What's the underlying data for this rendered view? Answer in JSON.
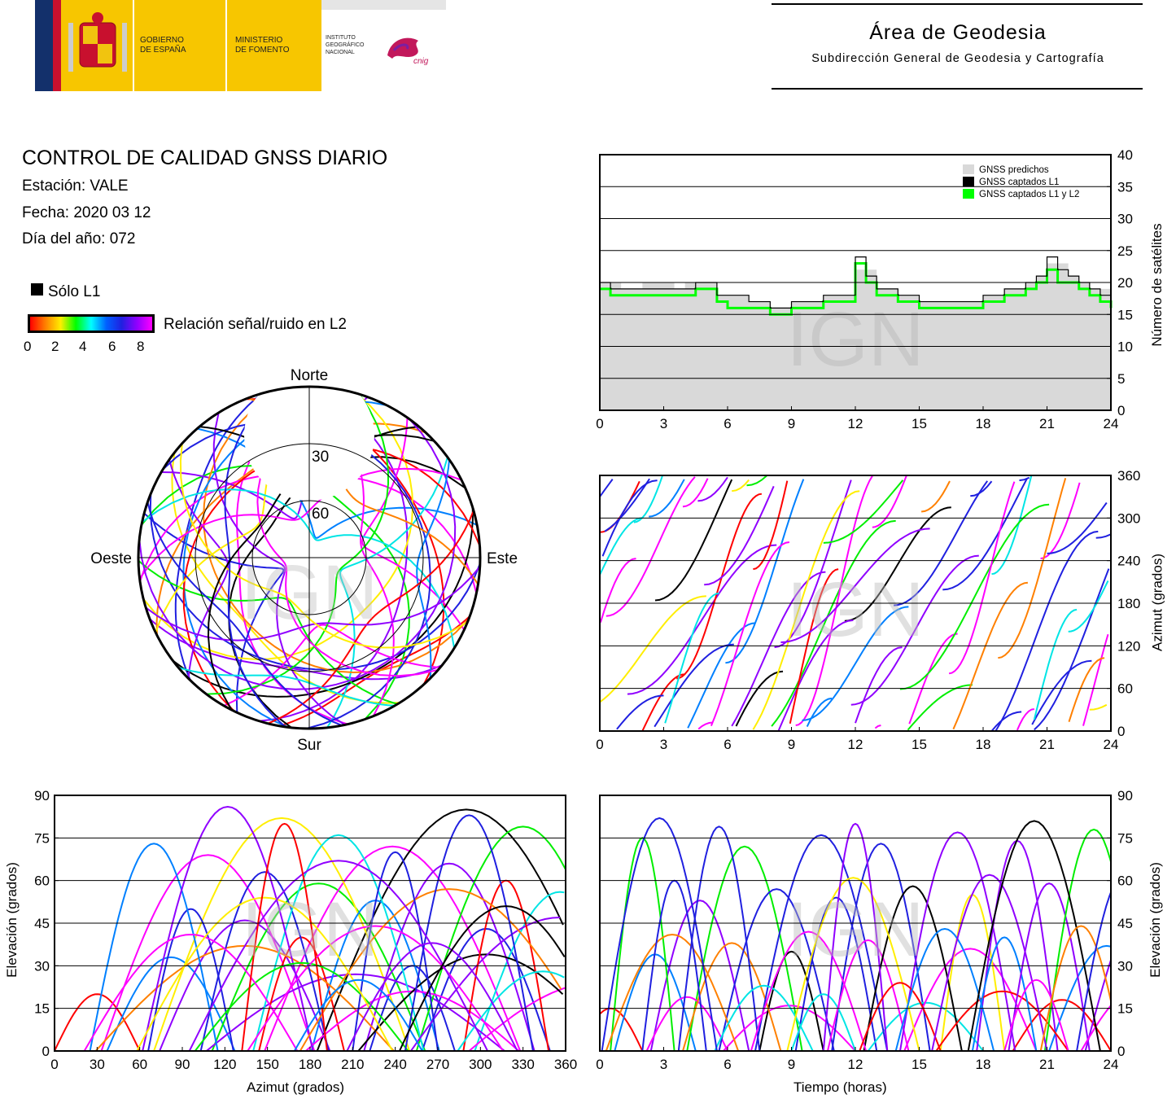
{
  "header": {
    "gov_line1": "GOBIERNO",
    "gov_line2": "DE ESPAÑA",
    "min_line1": "MINISTERIO",
    "min_line2": "DE FOMENTO",
    "inst_line1": "INSTITUTO",
    "inst_line2": "GEOGRÁFICO",
    "inst_line3": "NACIONAL",
    "cnig": "cnig",
    "area_title": "Área de Geodesia",
    "area_subtitle": "Subdirección General de Geodesia y Cartografía"
  },
  "info": {
    "title": "CONTROL DE CALIDAD GNSS DIARIO",
    "station": "Estación: VALE",
    "date": "Fecha: 2020 03 12",
    "doy": "Día del año: 072",
    "legend_l1": "Sólo L1",
    "legend_snr": "Relación señal/ruido en L2",
    "colorbar_ticks": [
      "0",
      "2",
      "4",
      "6",
      "8"
    ]
  },
  "watermark": "IGN",
  "colors": {
    "predicted": "#d9d9d9",
    "l1": "#000000",
    "l1l2": "#00ff00"
  },
  "chart_data": [
    {
      "id": "satellite-count",
      "type": "area",
      "legend": [
        "GNSS predichos",
        "GNSS captados L1",
        "GNSS captados L1 y L2"
      ],
      "legend_position": "top-right",
      "ylabel": "Número de satélites",
      "xlim": [
        0,
        24
      ],
      "ylim": [
        0,
        40
      ],
      "xticks": [
        "0",
        "3",
        "6",
        "9",
        "12",
        "15",
        "18",
        "21",
        "24"
      ],
      "yticks": [
        "0",
        "5",
        "10",
        "15",
        "20",
        "25",
        "30",
        "35",
        "40"
      ],
      "grid": true,
      "x": [
        0,
        0.5,
        1,
        1.5,
        2,
        2.5,
        3,
        3.5,
        4,
        4.5,
        5,
        5.5,
        6,
        6.5,
        7,
        7.5,
        8,
        8.5,
        9,
        9.5,
        10,
        10.5,
        11,
        11.5,
        12,
        12.5,
        13,
        13.5,
        14,
        14.5,
        15,
        15.5,
        16,
        16.5,
        17,
        17.5,
        18,
        18.5,
        19,
        19.5,
        20,
        20.5,
        21,
        21.5,
        22,
        22.5,
        23,
        23.5,
        24
      ],
      "predicted": [
        20,
        20,
        19,
        19,
        20,
        20,
        20,
        19,
        20,
        20,
        20,
        18,
        18,
        18,
        17,
        17,
        16,
        16,
        17,
        17,
        17,
        18,
        18,
        18,
        22,
        22,
        19,
        19,
        18,
        18,
        17,
        17,
        17,
        17,
        17,
        17,
        18,
        18,
        19,
        19,
        20,
        21,
        23,
        23,
        21,
        20,
        19,
        19,
        18
      ],
      "l1": [
        20,
        19,
        19,
        19,
        19,
        19,
        19,
        19,
        19,
        20,
        20,
        18,
        18,
        18,
        17,
        17,
        16,
        16,
        17,
        17,
        17,
        18,
        18,
        18,
        24,
        21,
        19,
        19,
        18,
        18,
        17,
        17,
        17,
        17,
        17,
        17,
        18,
        18,
        19,
        19,
        20,
        21,
        24,
        22,
        21,
        20,
        19,
        18,
        17
      ],
      "l1l2": [
        19,
        18,
        18,
        18,
        18,
        18,
        18,
        18,
        18,
        19,
        19,
        17,
        16,
        16,
        16,
        16,
        15,
        15,
        16,
        16,
        16,
        17,
        17,
        17,
        23,
        20,
        18,
        18,
        17,
        17,
        16,
        16,
        16,
        16,
        16,
        16,
        17,
        17,
        18,
        18,
        19,
        20,
        22,
        20,
        20,
        19,
        18,
        17,
        16
      ]
    },
    {
      "id": "azimuth-time",
      "type": "scatter",
      "ylabel": "Azimut (grados)",
      "xlim": [
        0,
        24
      ],
      "ylim": [
        0,
        360
      ],
      "xticks": [
        "0",
        "3",
        "6",
        "9",
        "12",
        "15",
        "18",
        "21",
        "24"
      ],
      "yticks": [
        "0",
        "60",
        "120",
        "180",
        "240",
        "300",
        "360"
      ],
      "grid": true
    },
    {
      "id": "skyplot",
      "type": "scatter",
      "labels": {
        "north": "Norte",
        "south": "Sur",
        "east": "Este",
        "west": "Oeste"
      },
      "elevation_rings": [
        "30",
        "60"
      ]
    },
    {
      "id": "elevation-azimuth",
      "type": "scatter",
      "xlabel": "Azimut (grados)",
      "ylabel": "Elevación (grados)",
      "xlim": [
        0,
        360
      ],
      "ylim": [
        0,
        90
      ],
      "xticks": [
        "0",
        "30",
        "60",
        "90",
        "120",
        "150",
        "180",
        "210",
        "240",
        "270",
        "300",
        "330",
        "360"
      ],
      "yticks": [
        "0",
        "15",
        "30",
        "45",
        "60",
        "75",
        "90"
      ],
      "grid": true
    },
    {
      "id": "elevation-time",
      "type": "scatter",
      "xlabel": "Tiempo (horas)",
      "ylabel": "Elevación (grados)",
      "xlim": [
        0,
        24
      ],
      "ylim": [
        0,
        90
      ],
      "xticks": [
        "0",
        "3",
        "6",
        "9",
        "12",
        "15",
        "18",
        "21",
        "24"
      ],
      "yticks": [
        "0",
        "15",
        "30",
        "45",
        "60",
        "75",
        "90"
      ],
      "grid": true
    }
  ]
}
